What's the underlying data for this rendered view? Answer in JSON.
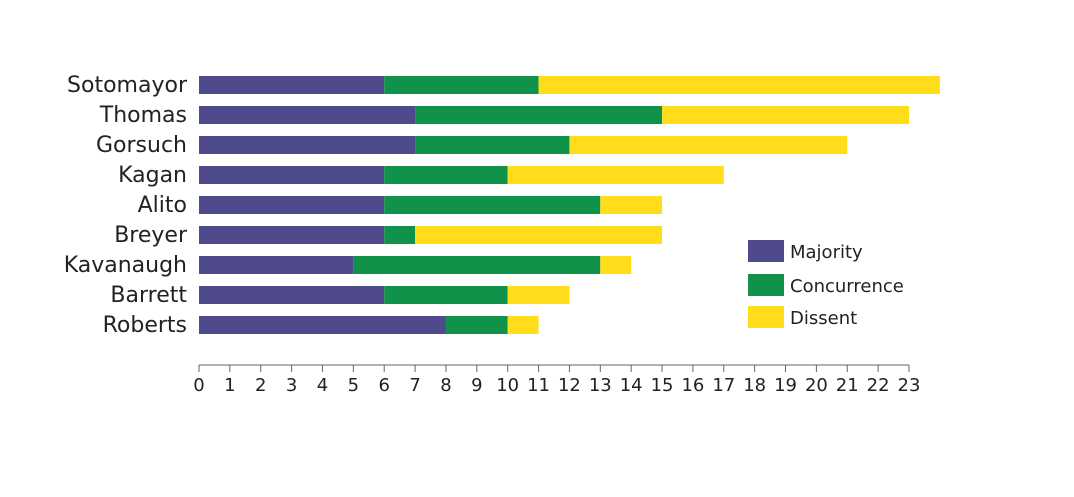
{
  "chart_data": {
    "type": "stacked-bar-horizontal",
    "categories": [
      "Sotomayor",
      "Thomas",
      "Gorsuch",
      "Kagan",
      "Alito",
      "Breyer",
      "Kavanaugh",
      "Barrett",
      "Roberts"
    ],
    "series": [
      {
        "name": "Majority",
        "color": "#4e4a8c",
        "values": [
          6,
          7,
          7,
          6,
          6,
          6,
          5,
          6,
          8
        ]
      },
      {
        "name": "Concurrence",
        "color": "#10924a",
        "values": [
          5,
          8,
          5,
          4,
          7,
          1,
          8,
          4,
          2
        ]
      },
      {
        "name": "Dissent",
        "color": "#ffdd1a",
        "values": [
          13,
          8,
          9,
          7,
          2,
          8,
          1,
          2,
          1
        ]
      }
    ],
    "xlim": [
      0,
      23
    ],
    "xticks": [
      0,
      1,
      2,
      3,
      4,
      5,
      6,
      7,
      8,
      9,
      10,
      11,
      12,
      13,
      14,
      15,
      16,
      17,
      18,
      19,
      20,
      21,
      22,
      23
    ]
  }
}
